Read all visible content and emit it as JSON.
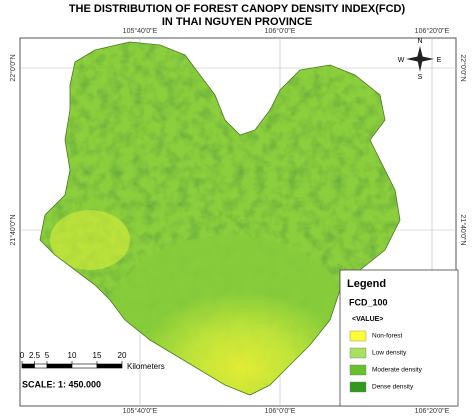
{
  "title": {
    "line1": "THE DISTRIBUTION OF FOREST CANOPY DENSITY INDEX(FCD)",
    "line2": "IN THAI NGUYEN PROVINCE"
  },
  "graticule": {
    "top": [
      "105°40'0\"E",
      "106°0'0\"E",
      "106°20'0\"E"
    ],
    "bottom": [
      "105°40'0\"E",
      "106°0'0\"E",
      "106°20'0\"E"
    ],
    "left": [
      "22°0'0\"N",
      "21°40'0\"N"
    ],
    "right": [
      "22°0'0\"N",
      "21°40'0\"N"
    ]
  },
  "north_arrow": {
    "n": "N",
    "s": "S",
    "e": "E",
    "w": "W"
  },
  "legend": {
    "title": "Legend",
    "layer": "FCD_100",
    "field": "<VALUE>",
    "items": [
      {
        "label": "Non-forest",
        "color": "#ffff33"
      },
      {
        "label": "Low density",
        "color": "#a8e060"
      },
      {
        "label": "Moderate density",
        "color": "#66c22a"
      },
      {
        "label": "Dense density",
        "color": "#2f9a1e"
      }
    ]
  },
  "scale_bar": {
    "ticks": [
      0,
      2.5,
      5,
      10,
      15,
      20
    ],
    "unit": "Kilometers",
    "ratio": "SCALE: 1: 450.000"
  }
}
